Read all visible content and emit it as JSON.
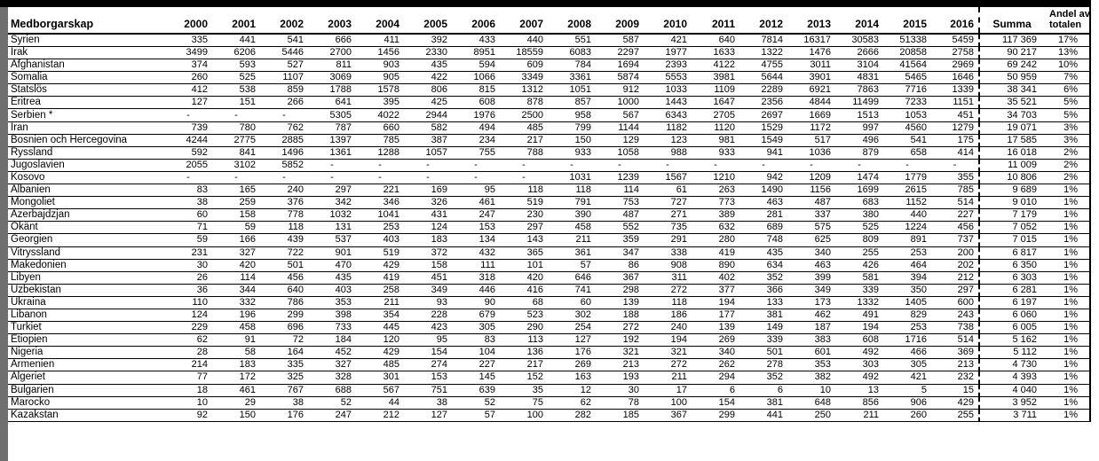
{
  "table": {
    "header": {
      "name_col": "Medborgarskap",
      "years": [
        "2000",
        "2001",
        "2002",
        "2003",
        "2004",
        "2005",
        "2006",
        "2007",
        "2008",
        "2009",
        "2010",
        "2011",
        "2012",
        "2013",
        "2014",
        "2015",
        "2016"
      ],
      "summa": "Summa",
      "andel_line1": "Andel av",
      "andel_line2": "totalen"
    },
    "rows": [
      {
        "name": "Syrien",
        "values": [
          "335",
          "441",
          "541",
          "666",
          "411",
          "392",
          "433",
          "440",
          "551",
          "587",
          "421",
          "640",
          "7814",
          "16317",
          "30583",
          "51338",
          "5459"
        ],
        "summa": "117 369",
        "andel": "17%"
      },
      {
        "name": "Irak",
        "values": [
          "3499",
          "6206",
          "5446",
          "2700",
          "1456",
          "2330",
          "8951",
          "18559",
          "6083",
          "2297",
          "1977",
          "1633",
          "1322",
          "1476",
          "2666",
          "20858",
          "2758"
        ],
        "summa": "90 217",
        "andel": "13%"
      },
      {
        "name": "Afghanistan",
        "values": [
          "374",
          "593",
          "527",
          "811",
          "903",
          "435",
          "594",
          "609",
          "784",
          "1694",
          "2393",
          "4122",
          "4755",
          "3011",
          "3104",
          "41564",
          "2969"
        ],
        "summa": "69 242",
        "andel": "10%"
      },
      {
        "name": "Somalia",
        "values": [
          "260",
          "525",
          "1107",
          "3069",
          "905",
          "422",
          "1066",
          "3349",
          "3361",
          "5874",
          "5553",
          "3981",
          "5644",
          "3901",
          "4831",
          "5465",
          "1646"
        ],
        "summa": "50 959",
        "andel": "7%"
      },
      {
        "name": "Statslös",
        "values": [
          "412",
          "538",
          "859",
          "1788",
          "1578",
          "806",
          "815",
          "1312",
          "1051",
          "912",
          "1033",
          "1109",
          "2289",
          "6921",
          "7863",
          "7716",
          "1339"
        ],
        "summa": "38 341",
        "andel": "6%"
      },
      {
        "name": "Eritrea",
        "values": [
          "127",
          "151",
          "266",
          "641",
          "395",
          "425",
          "608",
          "878",
          "857",
          "1000",
          "1443",
          "1647",
          "2356",
          "4844",
          "11499",
          "7233",
          "1151"
        ],
        "summa": "35 521",
        "andel": "5%"
      },
      {
        "name": "Serbien *",
        "values": [
          "-",
          "-",
          "-",
          "5305",
          "4022",
          "2944",
          "1976",
          "2500",
          "958",
          "567",
          "6343",
          "2705",
          "2697",
          "1669",
          "1513",
          "1053",
          "451"
        ],
        "summa": "34 703",
        "andel": "5%"
      },
      {
        "name": "Iran",
        "values": [
          "739",
          "780",
          "762",
          "787",
          "660",
          "582",
          "494",
          "485",
          "799",
          "1144",
          "1182",
          "1120",
          "1529",
          "1172",
          "997",
          "4560",
          "1279"
        ],
        "summa": "19 071",
        "andel": "3%"
      },
      {
        "name": "Bosnien och Hercegovina",
        "values": [
          "4244",
          "2775",
          "2885",
          "1397",
          "785",
          "387",
          "234",
          "217",
          "150",
          "129",
          "123",
          "981",
          "1549",
          "517",
          "496",
          "541",
          "175"
        ],
        "summa": "17 585",
        "andel": "3%"
      },
      {
        "name": "Ryssland",
        "values": [
          "592",
          "841",
          "1496",
          "1361",
          "1288",
          "1057",
          "755",
          "788",
          "933",
          "1058",
          "988",
          "933",
          "941",
          "1036",
          "879",
          "658",
          "414"
        ],
        "summa": "16 018",
        "andel": "2%"
      },
      {
        "name": "Jugoslavien",
        "values": [
          "2055",
          "3102",
          "5852",
          "-",
          "-",
          "-",
          "-",
          "-",
          "-",
          "-",
          "-",
          "-",
          "-",
          "-",
          "-",
          "-",
          "-"
        ],
        "summa": "11 009",
        "andel": "2%"
      },
      {
        "name": "Kosovo",
        "values": [
          "-",
          "-",
          "-",
          "-",
          "-",
          "-",
          "-",
          "-",
          "1031",
          "1239",
          "1567",
          "1210",
          "942",
          "1209",
          "1474",
          "1779",
          "355"
        ],
        "summa": "10 806",
        "andel": "2%"
      },
      {
        "name": "Albanien",
        "values": [
          "83",
          "165",
          "240",
          "297",
          "221",
          "169",
          "95",
          "118",
          "118",
          "114",
          "61",
          "263",
          "1490",
          "1156",
          "1699",
          "2615",
          "785"
        ],
        "summa": "9 689",
        "andel": "1%"
      },
      {
        "name": "Mongoliet",
        "values": [
          "38",
          "259",
          "376",
          "342",
          "346",
          "326",
          "461",
          "519",
          "791",
          "753",
          "727",
          "773",
          "463",
          "487",
          "683",
          "1152",
          "514"
        ],
        "summa": "9 010",
        "andel": "1%"
      },
      {
        "name": "Azerbajdzjan",
        "values": [
          "60",
          "158",
          "778",
          "1032",
          "1041",
          "431",
          "247",
          "230",
          "390",
          "487",
          "271",
          "389",
          "281",
          "337",
          "380",
          "440",
          "227"
        ],
        "summa": "7 179",
        "andel": "1%"
      },
      {
        "name": "Okänt",
        "values": [
          "71",
          "59",
          "118",
          "131",
          "253",
          "124",
          "153",
          "297",
          "458",
          "552",
          "735",
          "632",
          "689",
          "575",
          "525",
          "1224",
          "456"
        ],
        "summa": "7 052",
        "andel": "1%"
      },
      {
        "name": "Georgien",
        "values": [
          "59",
          "166",
          "439",
          "537",
          "403",
          "183",
          "134",
          "143",
          "211",
          "359",
          "291",
          "280",
          "748",
          "625",
          "809",
          "891",
          "737"
        ],
        "summa": "7 015",
        "andel": "1%"
      },
      {
        "name": "Vitryssland",
        "values": [
          "231",
          "327",
          "722",
          "901",
          "519",
          "372",
          "432",
          "365",
          "361",
          "347",
          "338",
          "419",
          "435",
          "340",
          "255",
          "253",
          "200"
        ],
        "summa": "6 817",
        "andel": "1%"
      },
      {
        "name": "Makedonien",
        "values": [
          "30",
          "420",
          "501",
          "470",
          "429",
          "158",
          "111",
          "101",
          "57",
          "86",
          "908",
          "890",
          "634",
          "463",
          "426",
          "464",
          "202"
        ],
        "summa": "6 350",
        "andel": "1%"
      },
      {
        "name": "Libyen",
        "values": [
          "26",
          "114",
          "456",
          "435",
          "419",
          "451",
          "318",
          "420",
          "646",
          "367",
          "311",
          "402",
          "352",
          "399",
          "581",
          "394",
          "212"
        ],
        "summa": "6 303",
        "andel": "1%"
      },
      {
        "name": "Uzbekistan",
        "values": [
          "36",
          "344",
          "640",
          "403",
          "258",
          "349",
          "446",
          "416",
          "741",
          "298",
          "272",
          "377",
          "366",
          "349",
          "339",
          "350",
          "297"
        ],
        "summa": "6 281",
        "andel": "1%"
      },
      {
        "name": "Ukraina",
        "values": [
          "110",
          "332",
          "786",
          "353",
          "211",
          "93",
          "90",
          "68",
          "60",
          "139",
          "118",
          "194",
          "133",
          "173",
          "1332",
          "1405",
          "600"
        ],
        "summa": "6 197",
        "andel": "1%"
      },
      {
        "name": "Libanon",
        "values": [
          "124",
          "196",
          "299",
          "398",
          "354",
          "228",
          "679",
          "523",
          "302",
          "188",
          "186",
          "177",
          "381",
          "462",
          "491",
          "829",
          "243"
        ],
        "summa": "6 060",
        "andel": "1%"
      },
      {
        "name": "Turkiet",
        "values": [
          "229",
          "458",
          "696",
          "733",
          "445",
          "423",
          "305",
          "290",
          "254",
          "272",
          "240",
          "139",
          "149",
          "187",
          "194",
          "253",
          "738"
        ],
        "summa": "6 005",
        "andel": "1%"
      },
      {
        "name": "Etiopien",
        "values": [
          "62",
          "91",
          "72",
          "184",
          "120",
          "95",
          "83",
          "113",
          "127",
          "192",
          "194",
          "269",
          "339",
          "383",
          "608",
          "1716",
          "514"
        ],
        "summa": "5 162",
        "andel": "1%"
      },
      {
        "name": "Nigeria",
        "values": [
          "28",
          "58",
          "164",
          "452",
          "429",
          "154",
          "104",
          "136",
          "176",
          "321",
          "321",
          "340",
          "501",
          "601",
          "492",
          "466",
          "369"
        ],
        "summa": "5 112",
        "andel": "1%"
      },
      {
        "name": "Armenien",
        "values": [
          "214",
          "183",
          "335",
          "327",
          "485",
          "274",
          "227",
          "217",
          "269",
          "213",
          "272",
          "262",
          "278",
          "353",
          "303",
          "305",
          "213"
        ],
        "summa": "4 730",
        "andel": "1%"
      },
      {
        "name": "Algeriet",
        "values": [
          "77",
          "172",
          "325",
          "328",
          "301",
          "153",
          "145",
          "152",
          "163",
          "193",
          "211",
          "294",
          "352",
          "382",
          "492",
          "421",
          "232"
        ],
        "summa": "4 393",
        "andel": "1%"
      },
      {
        "name": "Bulgarien",
        "values": [
          "18",
          "461",
          "767",
          "688",
          "567",
          "751",
          "639",
          "35",
          "12",
          "30",
          "17",
          "6",
          "6",
          "10",
          "13",
          "5",
          "15"
        ],
        "summa": "4 040",
        "andel": "1%"
      },
      {
        "name": "Marocko",
        "values": [
          "10",
          "29",
          "38",
          "52",
          "44",
          "38",
          "52",
          "75",
          "62",
          "78",
          "100",
          "154",
          "381",
          "648",
          "856",
          "906",
          "429"
        ],
        "summa": "3 952",
        "andel": "1%"
      },
      {
        "name": "Kazakstan",
        "values": [
          "92",
          "150",
          "176",
          "247",
          "212",
          "127",
          "57",
          "100",
          "282",
          "185",
          "367",
          "299",
          "441",
          "250",
          "211",
          "260",
          "255"
        ],
        "summa": "3 711",
        "andel": "1%"
      }
    ]
  },
  "colors": {
    "line": "#000000",
    "left_strip": "#6f6f6f",
    "background": "#ffffff"
  }
}
